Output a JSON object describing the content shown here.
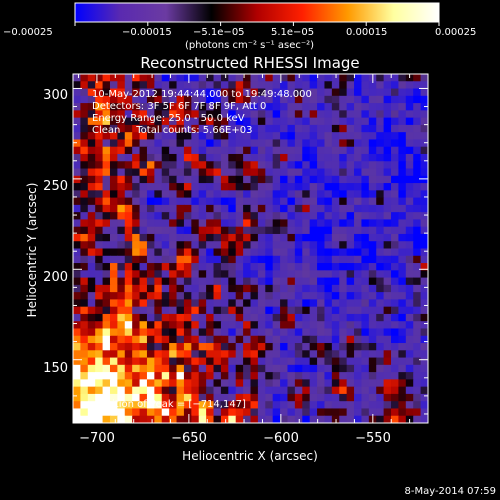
{
  "chart_data": {
    "type": "heatmap",
    "title": "Reconstructed RHESSI Image",
    "xlabel": "Heliocentric X (arcsec)",
    "ylabel": "Heliocentric Y (arcsec)",
    "xlim": [
      -713,
      -520
    ],
    "ylim": [
      115,
      308
    ],
    "x_ticks": [
      -700,
      -650,
      -600,
      -550
    ],
    "x_tick_labels": [
      "−700",
      "−650",
      "−600",
      "−550"
    ],
    "y_ticks": [
      150,
      200,
      250,
      300
    ],
    "y_tick_labels": [
      "150",
      "200",
      "250",
      "300"
    ],
    "colorbar": {
      "range": [
        -0.00025,
        0.00025
      ],
      "tick_labels": [
        "−0.00025",
        "−0.00015",
        "−5.1e−05",
        "5.1e−05",
        "0.00015",
        "0.00025"
      ],
      "unit_label": "(photons cm⁻² s⁻¹ asec⁻²)",
      "colors": [
        "#0000ff",
        "#5a2ab0",
        "#6b3ba2",
        "#000000",
        "#b00000",
        "#ff2000",
        "#ff9a00",
        "#ffffa0",
        "#ffffff"
      ]
    },
    "annotations": [
      "10-May-2012 19:44:44.000 to 19:49:48.000",
      "Detectors: 3F 5F 6F 7F 8F 9F, Att 0",
      "Energy Range: 25.0 - 50.0 keV",
      "Clean     Total counts: 5.66E+03"
    ],
    "peak_label": "Position of Peak = [−714,147]",
    "peak_position": [
      -714,
      147
    ],
    "total_counts": "5.66E+03",
    "energy_range_keV": [
      25.0,
      50.0
    ],
    "grid": false
  },
  "footer": {
    "timestamp": "8-May-2014 07:59"
  }
}
